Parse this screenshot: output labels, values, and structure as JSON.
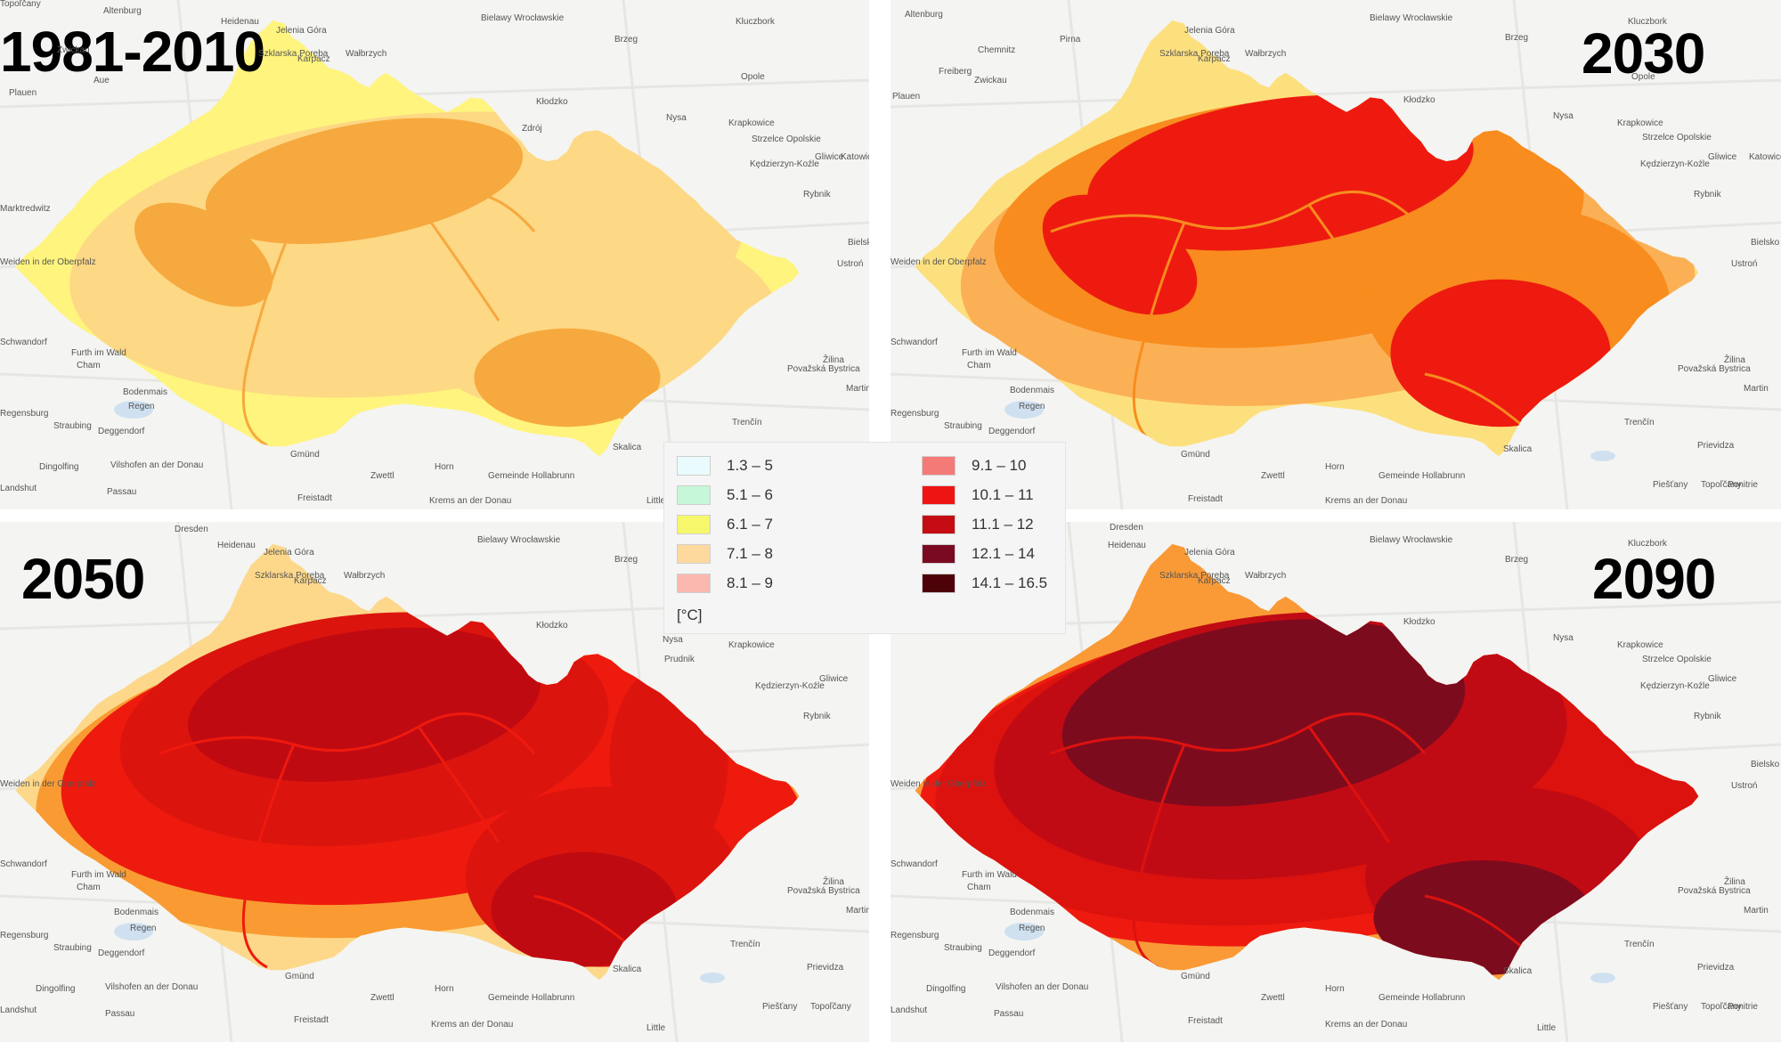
{
  "panels": [
    {
      "id": "p0",
      "period": "1981-2010",
      "layers": [
        {
          "color": "#fff47e"
        },
        {
          "color": "#fdd885"
        },
        {
          "color": "#f6a93e"
        }
      ]
    },
    {
      "id": "p1",
      "period": "2030",
      "layers": [
        {
          "color": "#fde07e"
        },
        {
          "color": "#fbb056"
        },
        {
          "color": "#f88c1e"
        },
        {
          "color": "#ee1a10"
        }
      ]
    },
    {
      "id": "p2",
      "period": "2050",
      "layers": [
        {
          "color": "#fdd88a"
        },
        {
          "color": "#f99b32"
        },
        {
          "color": "#ee1a0e"
        },
        {
          "color": "#dc140e"
        },
        {
          "color": "#c00a12"
        }
      ]
    },
    {
      "id": "p3",
      "period": "2090",
      "layers": [
        {
          "color": "#f99a36"
        },
        {
          "color": "#ee1a10"
        },
        {
          "color": "#dc120e"
        },
        {
          "color": "#c10b14"
        },
        {
          "color": "#7d0b1e"
        }
      ]
    }
  ],
  "legend": {
    "unit": "[°C]",
    "items": [
      {
        "label": "1.3 – 5",
        "color": "#eafbff"
      },
      {
        "label": "5.1 – 6",
        "color": "#c6f7d8"
      },
      {
        "label": "6.1 – 7",
        "color": "#f6f76a"
      },
      {
        "label": "7.1 – 8",
        "color": "#fdd99e"
      },
      {
        "label": "8.1 – 9",
        "color": "#fbb8ae"
      },
      {
        "label": "9.1 – 10",
        "color": "#f47a78"
      },
      {
        "label": "10.1 – 11",
        "color": "#ef1414"
      },
      {
        "label": "11.1 – 12",
        "color": "#c50c12"
      },
      {
        "label": "12.1 – 14",
        "color": "#7a0a22"
      },
      {
        "label": "14.1 – 16.5",
        "color": "#4c0208"
      }
    ]
  },
  "place_labels": [
    "Dresden",
    "Altenburg",
    "Heidenau",
    "Pirna",
    "Chemnitz",
    "Freiberg",
    "Zwickau",
    "Aue",
    "Plauen",
    "Jelenia Góra",
    "Szklarska Poręba",
    "Karpacz",
    "Wałbrzych",
    "Bielawy Wrocławskie",
    "Brzeg",
    "Kluczbork",
    "Opole",
    "Kłodzko",
    "Nysa",
    "Krapkowice",
    "Strzelce Opolskie",
    "Prudnik",
    "Kędzierzyn-Koźle",
    "Gliwice",
    "Katowice",
    "Rybnik",
    "Bielsko",
    "Ustroń",
    "Weiden in der Oberpfalz",
    "Schwandorf",
    "Furth im Wald",
    "Cham",
    "Bodenmais",
    "Regen",
    "Regensburg",
    "Straubing",
    "Deggendorf",
    "Dingolfing",
    "Vilshofen an der Donau",
    "Passau",
    "Landshut",
    "Gmünd",
    "Zwettl",
    "Horn",
    "Gemeinde Hollabrunn",
    "Krems an der Donau",
    "Freistadt",
    "Skalica",
    "Trenčín",
    "Žilina",
    "Považská Bystrica",
    "Martin",
    "Prievidza",
    "Topoľčany",
    "Piešťany",
    "Little",
    "Ponitrie",
    "Marktredwitz",
    "Zdrój"
  ]
}
